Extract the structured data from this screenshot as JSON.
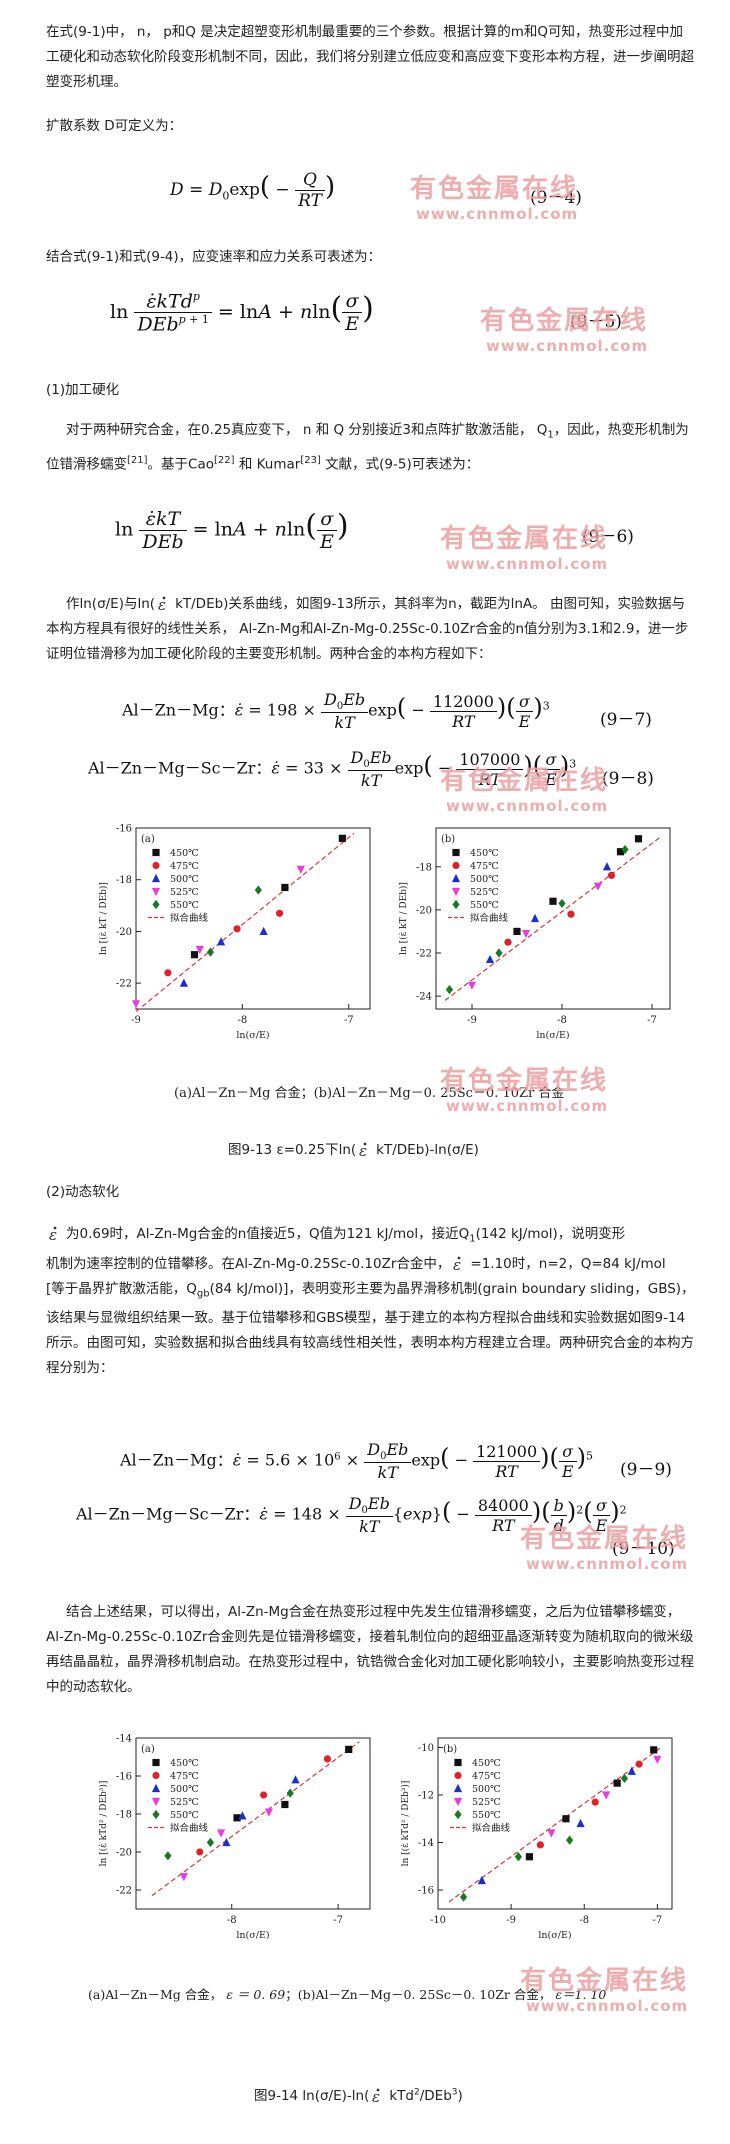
{
  "paragraphs": {
    "p1": "在式(9-1)中， n， p和Q 是决定超塑变形机制最重要的三个参数。根据计算的m和Q可知，热变形过程中加工硬化和动态软化阶段变形机制不同，因此，我们将分别建立低应变和高应变下变形本构方程，进一步阐明超塑变形机理。",
    "p2": "扩散系数 D可定义为：",
    "p3": "结合式(9-1)和式(9-4)，应变速率和应力关系可表述为：",
    "h1": "(1)加工硬化",
    "p4a": "对于两种研究合金，在0.25真应变下， n 和 Q 分别接近3和点阵扩散激活能， Q",
    "p4a_sub": "1",
    "p4b": "，因此，热变形机制为位错滑移蠕变",
    "p4b_ref": "[21]",
    "p4c": "。基于Cao",
    "p4c_ref": "[22]",
    "p4d": " 和 Kumar",
    "p4d_ref": "[23]",
    "p4e": " 文献，式(9-5)可表述为：",
    "p5a": "作ln(σ/E)与ln(",
    "p5b": "kT/DEb)关系曲线，如图9-13所示，其斜率为n，截距为lnA。 由图可知，实验数据与本构方程具有很好的线性关系， Al-Zn-Mg和Al-Zn-Mg-0.25Sc-0.10Zr合金的n值分别为3.1和2.9，进一步证明位错滑移为加工硬化阶段的主要变形机制。两种合金的本构方程如下：",
    "h2": "(2)动态软化",
    "p6a": "为0.69时，Al-Zn-Mg合金的n值接近5，Q值为121 kJ/mol，接近Q",
    "p6a_sub": "1",
    "p6b": "(142 kJ/mol)，说明变形",
    "p6c": "机制为速率控制的位错攀移。在Al-Zn-Mg-0.25Sc-0.10Zr合金中，",
    "p6d": "=1.10时，n=2，Q=84 kJ/mol",
    "p6e": "[等于晶界扩散激活能，Q",
    "p6e_sub": "gb",
    "p6f": "(84 kJ/mol)]，表明变形主要为晶界滑移机制(grain boundary sliding，GBS)，该结果与显微组织结果一致。基于位错攀移和GBS模型，基于建立的本构方程拟合曲线和实验数据如图9-14所示。由图可知，实验数据和拟合曲线具有较高线性相关性，表明本构方程建立合理。两种研究合金的本构方程分别为：",
    "p7": "结合上述结果，可以得出，Al-Zn-Mg合金在热变形过程中先发生位错滑移蠕变，之后为位错攀移蠕变，Al-Zn-Mg-0.25Sc-0.10Zr合金则先是位错滑移蠕变，接着轧制位向的超细亚晶逐渐转变为随机取向的微米级再结晶晶粒，晶界滑移机制启动。在热变形过程中，钪锆微合金化对加工硬化影响较小，主要影响热变形过程中的动态软化。"
  },
  "equations": {
    "eq4_num": "(9－4)",
    "eq5_num": "(9－5)",
    "eq6_num": "(9－6)",
    "eq7_num": "(9－7)",
    "eq8_num": "(9－8)",
    "eq9_num": "(9－9)",
    "eq10_num": "(9－10)",
    "eq7_label": "Al－Zn－Mg：",
    "eq8_label": "Al－Zn－Mg－Sc－Zr：",
    "eq9_label": "Al－Zn－Mg：",
    "eq10_label": "Al－Zn－Mg－Sc－Zr：",
    "eq7_coef": "198",
    "eq7_Q": "112000",
    "eq7_exp": "3",
    "eq8_coef": "33",
    "eq8_Q": "107000",
    "eq8_exp": "3",
    "eq9_coef": "5.6 × 10",
    "eq9_coef_exp": "6",
    "eq9_Q": "121000",
    "eq9_exp": "5",
    "eq10_coef": "148",
    "eq10_Q": "84000",
    "eq10_exp1": "2",
    "eq10_exp2": "2",
    "eq10_fn": "exp"
  },
  "watermark": {
    "cn": "有色金属在线",
    "url": "www.cnnmol.com"
  },
  "figures": {
    "fig13": {
      "caption": "(a)Al－Zn－Mg 合金；(b)Al－Zn－Mg－0. 25Sc－0. 10Zr 合金",
      "title_a": "图9-13 ε=0.25下ln(",
      "title_b": "kT/DEb)-ln(σ/E)"
    },
    "fig14": {
      "caption_a": "(a)Al－Zn－Mg 合金，",
      "caption_eps_a": "ε ＝ 0. 69",
      "caption_b": "；(b)Al－Zn－Mg－0. 25Sc－0. 10Zr 合金，",
      "caption_eps_b": "ε＝1. 10",
      "title_a": "图9-14 ln(σ/E)-ln(",
      "title_b": "kTd",
      "title_sup1": "2",
      "title_c": "/DEb",
      "title_sup2": "3",
      "title_d": ")"
    }
  },
  "chart_data": [
    {
      "type": "scatter",
      "panel": "(a)",
      "ylabel": "ln [(ε̇ kT / DEb)]",
      "xlabel": "ln(σ/E)",
      "xlim": [
        -9.0,
        -6.8
      ],
      "ylim": [
        -23,
        -16
      ],
      "xticks": [
        "-9",
        "-8",
        "-7"
      ],
      "yticks": [
        "-16",
        "-18",
        "-20",
        "-22"
      ],
      "legend": [
        "450℃",
        "475℃",
        "500℃",
        "525℃",
        "550℃",
        "拟合曲线"
      ],
      "series": [
        {
          "name": "450℃",
          "x": [
            -7.06,
            -7.6,
            -8.45
          ],
          "y": [
            -16.4,
            -18.3,
            -20.9
          ]
        },
        {
          "name": "475℃",
          "x": [
            -7.65,
            -8.05,
            -8.7
          ],
          "y": [
            -19.3,
            -19.9,
            -21.6
          ]
        },
        {
          "name": "500℃",
          "x": [
            -7.8,
            -8.2,
            -8.55
          ],
          "y": [
            -20.0,
            -20.4,
            -22.0
          ]
        },
        {
          "name": "525℃",
          "x": [
            -7.45,
            -8.4,
            -9.0
          ],
          "y": [
            -17.6,
            -20.7,
            -22.8
          ]
        },
        {
          "name": "550℃",
          "x": [
            -7.85,
            -8.3
          ],
          "y": [
            -18.4,
            -20.8
          ]
        }
      ],
      "fit": {
        "x": [
          -9.0,
          -6.95
        ],
        "y": [
          -23.1,
          -16.2
        ]
      }
    },
    {
      "type": "scatter",
      "panel": "(b)",
      "ylabel": "ln [(ε̇ kT / DEb)]",
      "xlabel": "ln(σ/E)",
      "xlim": [
        -9.4,
        -6.8
      ],
      "ylim": [
        -24.6,
        -16.2
      ],
      "xticks": [
        "-9",
        "-8",
        "-7"
      ],
      "yticks": [
        "-18",
        "-20",
        "-22",
        "-24"
      ],
      "legend": [
        "450℃",
        "475℃",
        "500℃",
        "525℃",
        "550℃",
        "拟合曲线"
      ],
      "series": [
        {
          "name": "450℃",
          "x": [
            -7.15,
            -7.35,
            -8.1,
            -8.5
          ],
          "y": [
            -16.7,
            -17.3,
            -19.6,
            -21.0
          ]
        },
        {
          "name": "475℃",
          "x": [
            -7.45,
            -7.9,
            -8.6
          ],
          "y": [
            -18.4,
            -20.2,
            -21.5
          ]
        },
        {
          "name": "500℃",
          "x": [
            -7.5,
            -8.3,
            -8.8
          ],
          "y": [
            -18.0,
            -20.4,
            -22.3
          ]
        },
        {
          "name": "525℃",
          "x": [
            -7.6,
            -8.4,
            -9.0
          ],
          "y": [
            -18.9,
            -21.1,
            -23.5
          ]
        },
        {
          "name": "550℃",
          "x": [
            -7.3,
            -8.0,
            -8.7,
            -9.25
          ],
          "y": [
            -17.2,
            -19.7,
            -22.0,
            -23.7
          ]
        }
      ],
      "fit": {
        "x": [
          -9.3,
          -6.9
        ],
        "y": [
          -24.2,
          -16.6
        ]
      }
    },
    {
      "type": "scatter",
      "panel": "(a)",
      "ylabel": "ln [(ε̇ kTd² / DEb³)]",
      "xlabel": "ln(σ/E)",
      "xlim": [
        -8.9,
        -6.7
      ],
      "ylim": [
        -23,
        -14
      ],
      "xticks": [
        "-8",
        "-7"
      ],
      "yticks": [
        "-14",
        "-16",
        "-18",
        "-20",
        "-22"
      ],
      "legend": [
        "450℃",
        "475℃",
        "500℃",
        "525℃",
        "550℃",
        "拟合曲线"
      ],
      "series": [
        {
          "name": "450℃",
          "x": [
            -6.9,
            -7.5,
            -7.95
          ],
          "y": [
            -14.6,
            -17.5,
            -18.2
          ]
        },
        {
          "name": "475℃",
          "x": [
            -7.1,
            -7.7,
            -8.3
          ],
          "y": [
            -15.1,
            -17.0,
            -20.0
          ]
        },
        {
          "name": "500℃",
          "x": [
            -7.4,
            -7.9,
            -8.05
          ],
          "y": [
            -16.2,
            -18.1,
            -19.5
          ]
        },
        {
          "name": "525℃",
          "x": [
            -7.65,
            -8.1,
            -8.45
          ],
          "y": [
            -17.9,
            -19.0,
            -21.3
          ]
        },
        {
          "name": "550℃",
          "x": [
            -7.45,
            -8.2,
            -8.6
          ],
          "y": [
            -16.9,
            -19.5,
            -20.2
          ]
        }
      ],
      "fit": {
        "x": [
          -8.75,
          -6.8
        ],
        "y": [
          -22.3,
          -14.2
        ]
      }
    },
    {
      "type": "scatter",
      "panel": "(b)",
      "ylabel": "ln [(ε̇ kTd² / DEb³)]",
      "xlabel": "ln(σ/E)",
      "xlim": [
        -10,
        -6.8
      ],
      "ylim": [
        -16.8,
        -9.6
      ],
      "xticks": [
        "-10",
        "-9",
        "-8",
        "-7"
      ],
      "yticks": [
        "-10",
        "-12",
        "-14",
        "-16"
      ],
      "legend": [
        "450℃",
        "475℃",
        "500℃",
        "525℃",
        "550℃",
        "拟合曲线"
      ],
      "series": [
        {
          "name": "450℃",
          "x": [
            -7.05,
            -7.55,
            -8.25,
            -8.75
          ],
          "y": [
            -10.1,
            -11.5,
            -13.0,
            -14.6
          ]
        },
        {
          "name": "475℃",
          "x": [
            -7.25,
            -7.85,
            -8.6
          ],
          "y": [
            -10.7,
            -12.3,
            -14.1
          ]
        },
        {
          "name": "500℃",
          "x": [
            -7.35,
            -8.05,
            -9.4
          ],
          "y": [
            -11.0,
            -13.2,
            -15.6
          ]
        },
        {
          "name": "525℃",
          "x": [
            -7.0,
            -7.7,
            -8.45
          ],
          "y": [
            -10.5,
            -12.0,
            -13.6
          ]
        },
        {
          "name": "550℃",
          "x": [
            -7.45,
            -8.2,
            -8.9,
            -9.65
          ],
          "y": [
            -11.3,
            -13.9,
            -14.6,
            -16.3
          ]
        }
      ],
      "fit": {
        "x": [
          -9.85,
          -6.95
        ],
        "y": [
          -16.5,
          -10.0
        ]
      }
    }
  ]
}
